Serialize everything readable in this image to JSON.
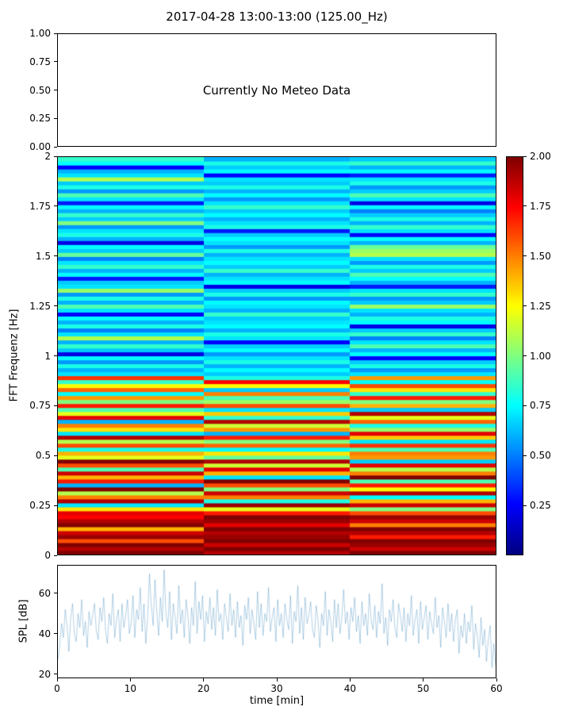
{
  "title": "2017-04-28 13:00-13:00 (125.00_Hz)",
  "panels": {
    "meteo": {
      "message": "Currently No Meteo Data",
      "y_axis": {
        "min": 0,
        "max": 1,
        "ticks": [
          {
            "value": 1.0,
            "label": "1.00"
          },
          {
            "value": 0.75,
            "label": "0.75"
          },
          {
            "value": 0.5,
            "label": "0.50"
          },
          {
            "value": 0.25,
            "label": "0.25"
          },
          {
            "value": 0.0,
            "label": "0.00"
          }
        ]
      }
    },
    "spectrogram": {
      "ylabel": "FFT Frequenz [Hz]",
      "y_axis": {
        "min": 0,
        "max": 2,
        "ticks": [
          {
            "value": 2,
            "label": "2"
          },
          {
            "value": 1.75,
            "label": "1.75"
          },
          {
            "value": 1.5,
            "label": "1.5"
          },
          {
            "value": 1.25,
            "label": "1.25"
          },
          {
            "value": 1,
            "label": "1"
          },
          {
            "value": 0.75,
            "label": "0.75"
          },
          {
            "value": 0.5,
            "label": "0.5"
          },
          {
            "value": 0.25,
            "label": "0.25"
          },
          {
            "value": 0,
            "label": "0"
          }
        ]
      }
    },
    "spl": {
      "ylabel": "SPL [dB]",
      "xlabel": "time [min]",
      "y_axis": {
        "min": 18,
        "max": 74,
        "ticks": [
          {
            "value": 60,
            "label": "60"
          },
          {
            "value": 40,
            "label": "40"
          },
          {
            "value": 20,
            "label": "20"
          }
        ]
      },
      "x_axis": {
        "min": 0,
        "max": 60,
        "ticks": [
          {
            "value": 0,
            "label": "0"
          },
          {
            "value": 10,
            "label": "10"
          },
          {
            "value": 20,
            "label": "20"
          },
          {
            "value": 30,
            "label": "30"
          },
          {
            "value": 40,
            "label": "40"
          },
          {
            "value": 50,
            "label": "50"
          },
          {
            "value": 60,
            "label": "60"
          }
        ]
      }
    }
  },
  "colorbar": {
    "colormap": "jet",
    "vmin": 0.0,
    "vmax": 2.0,
    "ticks": [
      {
        "value": 2.0,
        "label": "2.00"
      },
      {
        "value": 1.75,
        "label": "1.75"
      },
      {
        "value": 1.5,
        "label": "1.50"
      },
      {
        "value": 1.25,
        "label": "1.25"
      },
      {
        "value": 1.0,
        "label": "1.00"
      },
      {
        "value": 0.75,
        "label": "0.75"
      },
      {
        "value": 0.5,
        "label": "0.50"
      },
      {
        "value": 0.25,
        "label": "0.25"
      }
    ]
  },
  "chart_data": [
    {
      "type": "empty",
      "title": "meteo panel",
      "message": "Currently No Meteo Data",
      "ylim": [
        0,
        1
      ]
    },
    {
      "type": "heatmap",
      "ylabel": "FFT Frequenz [Hz]",
      "freq_range_hz": [
        0,
        2
      ],
      "time_columns_min": [
        [
          0,
          20
        ],
        [
          20,
          40
        ],
        [
          40,
          60
        ]
      ],
      "n_freq_bins": 100,
      "vmin": 0.0,
      "vmax": 2.0,
      "colormap": "jet",
      "series": [
        {
          "name": "0-20 min",
          "values": [
            2.0,
            1.9,
            2.0,
            1.6,
            1.95,
            1.85,
            1.4,
            2.0,
            1.9,
            1.75,
            1.8,
            1.3,
            0.7,
            1.9,
            1.5,
            1.1,
            2.0,
            0.6,
            1.7,
            1.4,
            1.85,
            0.9,
            1.6,
            2.0,
            1.2,
            1.4,
            0.8,
            1.6,
            1.1,
            1.9,
            0.7,
            1.3,
            1.5,
            0.6,
            1.8,
            1.2,
            0.9,
            1.7,
            1.0,
            1.45,
            0.75,
            1.55,
            1.25,
            0.85,
            1.65,
            0.7,
            0.6,
            0.8,
            0.55,
            0.75,
            0.2,
            0.65,
            0.85,
            0.6,
            1.1,
            0.7,
            0.5,
            0.8,
            0.6,
            0.75,
            0.25,
            0.7,
            0.9,
            0.6,
            0.8,
            0.55,
            1.05,
            0.7,
            0.65,
            0.3,
            0.75,
            0.6,
            0.85,
            0.7,
            0.5,
            0.95,
            0.65,
            0.75,
            0.2,
            0.6,
            0.8,
            0.7,
            0.55,
            1.0,
            0.65,
            0.85,
            0.6,
            0.75,
            0.3,
            0.7,
            0.9,
            0.55,
            0.8,
            0.65,
            1.1,
            0.7,
            0.6,
            0.25,
            0.75,
            0.85
          ]
        },
        {
          "name": "20-40 min",
          "values": [
            1.9,
            2.0,
            1.85,
            2.0,
            1.95,
            1.9,
            2.0,
            1.8,
            1.95,
            2.0,
            1.7,
            1.2,
            1.95,
            0.8,
            1.5,
            1.85,
            1.0,
            1.6,
            2.0,
            0.7,
            1.4,
            1.8,
            1.15,
            1.9,
            0.95,
            1.3,
            0.75,
            1.55,
            1.0,
            1.7,
            0.6,
            1.45,
            1.15,
            1.9,
            0.85,
            1.35,
            0.7,
            1.6,
            1.05,
            0.9,
            1.5,
            0.65,
            1.25,
            1.75,
            0.8,
            0.65,
            0.75,
            0.6,
            0.8,
            0.7,
            0.55,
            0.75,
            0.65,
            0.25,
            0.7,
            0.8,
            0.6,
            0.75,
            0.7,
            0.65,
            0.85,
            0.6,
            0.7,
            0.75,
            0.55,
            0.8,
            0.65,
            0.2,
            0.75,
            0.7,
            0.6,
            0.85,
            0.65,
            0.75,
            0.7,
            0.6,
            0.8,
            0.55,
            0.7,
            0.75,
            0.65,
            0.3,
            0.8,
            0.7,
            0.6,
            0.75,
            0.65,
            0.85,
            0.7,
            0.55,
            0.75,
            0.6,
            0.8,
            0.65,
            0.7,
            0.25,
            0.75,
            0.65,
            0.8,
            0.6
          ]
        },
        {
          "name": "40-60 min",
          "values": [
            2.0,
            1.85,
            1.95,
            2.0,
            1.7,
            1.9,
            2.0,
            1.5,
            1.85,
            1.95,
            1.6,
            1.0,
            1.85,
            1.4,
            0.75,
            1.9,
            1.25,
            1.7,
            0.9,
            2.0,
            1.5,
            1.1,
            1.8,
            0.65,
            1.45,
            1.5,
            0.9,
            1.65,
            0.7,
            1.35,
            1.8,
            1.05,
            0.8,
            1.55,
            1.2,
            1.9,
            0.65,
            1.4,
            1.0,
            1.7,
            0.85,
            1.3,
            1.6,
            0.75,
            1.45,
            0.7,
            0.55,
            0.8,
            0.65,
            0.25,
            0.75,
            0.6,
            0.9,
            0.7,
            0.5,
            0.85,
            0.65,
            0.2,
            0.75,
            0.8,
            0.6,
            0.7,
            1.05,
            0.65,
            0.55,
            0.85,
            0.7,
            0.3,
            0.6,
            0.75,
            0.9,
            0.65,
            0.8,
            0.55,
            0.7,
            1.1,
            1.05,
            0.95,
            0.6,
            0.75,
            0.25,
            0.7,
            0.85,
            0.6,
            0.8,
            0.65,
            0.5,
            0.75,
            0.2,
            0.7,
            0.9,
            0.65,
            0.55,
            0.8,
            0.7,
            0.3,
            0.75,
            0.6,
            0.85,
            0.65
          ]
        }
      ]
    },
    {
      "type": "line",
      "name": "SPL",
      "ylabel": "SPL [dB]",
      "xlabel": "time [min]",
      "x_range": [
        0,
        60
      ],
      "ylim": [
        18,
        74
      ],
      "line_color": "#1f77b4",
      "line_alpha": 0.38,
      "values": [
        27,
        34,
        45,
        38,
        52,
        44,
        31,
        48,
        55,
        40,
        36,
        50,
        43,
        57,
        39,
        46,
        33,
        51,
        44,
        49,
        55,
        41,
        37,
        53,
        46,
        58,
        42,
        35,
        50,
        44,
        60,
        38,
        47,
        52,
        36,
        55,
        43,
        49,
        57,
        40,
        45,
        59,
        38,
        52,
        47,
        63,
        41,
        55,
        35,
        48,
        70,
        54,
        44,
        67,
        51,
        39,
        58,
        46,
        72,
        50,
        43,
        61,
        37,
        55,
        48,
        40,
        64,
        45,
        52,
        38,
        57,
        49,
        35,
        53,
        44,
        66,
        40,
        56,
        47,
        59,
        36,
        51,
        45,
        58,
        42,
        53,
        39,
        62,
        46,
        50,
        37,
        55,
        48,
        41,
        60,
        44,
        52,
        38,
        56,
        43,
        49,
        34,
        54,
        47,
        58,
        40,
        52,
        45,
        37,
        61,
        43,
        55,
        39,
        50,
        46,
        63,
        41,
        48,
        53,
        36,
        57,
        44,
        50,
        38,
        55,
        47,
        42,
        59,
        35,
        51,
        46,
        64,
        40,
        53,
        37,
        58,
        45,
        49,
        56,
        42,
        38,
        54,
        47,
        33,
        50,
        44,
        61,
        39,
        52,
        46,
        36,
        57,
        43,
        55,
        40,
        48,
        62,
        45,
        51,
        37,
        53,
        46,
        58,
        41,
        49,
        35,
        56,
        44,
        50,
        39,
        60,
        47,
        42,
        54,
        38,
        51,
        45,
        65,
        40,
        48,
        34,
        52,
        46,
        57,
        43,
        38,
        55,
        49,
        41,
        53,
        36,
        50,
        44,
        59,
        39,
        47,
        52,
        35,
        56,
        42,
        48,
        54,
        37,
        51,
        45,
        40,
        58,
        43,
        49,
        33,
        53,
        46,
        38,
        55,
        41,
        50,
        36,
        47,
        52,
        30,
        44,
        38,
        50,
        35,
        46,
        41,
        54,
        32,
        45,
        39,
        28,
        48,
        34,
        42,
        26,
        37,
        44,
        23,
        35,
        24
      ]
    }
  ]
}
